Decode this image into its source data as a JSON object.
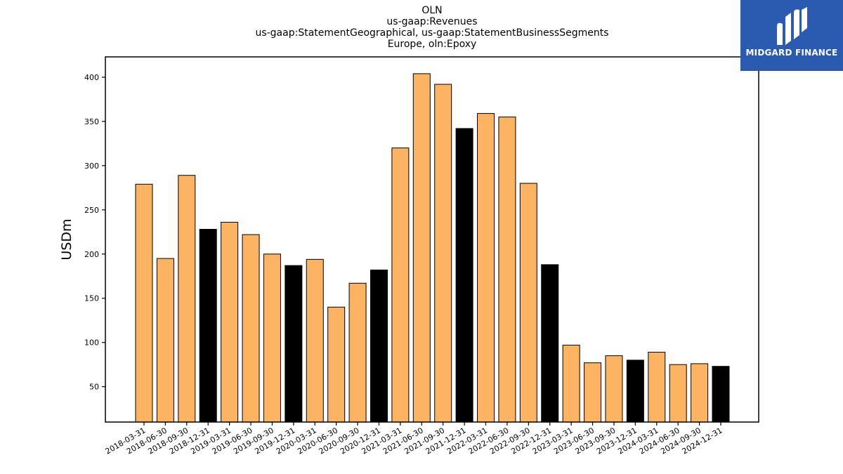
{
  "chart_data": {
    "type": "bar",
    "title_lines": [
      "OLN",
      "us-gaap:Revenues",
      "us-gaap:StatementGeographical, us-gaap:StatementBusinessSegments",
      "Europe, oln:Epoxy"
    ],
    "ylabel": "USDm",
    "xlabel": "",
    "ylim": [
      10,
      423
    ],
    "yticks": [
      50,
      100,
      150,
      200,
      250,
      300,
      350,
      400
    ],
    "grid": false,
    "colors": {
      "quarter": "#fdb462",
      "year_end": "#000000",
      "edge": "#000000"
    },
    "categories": [
      "2018-03-31",
      "2018-06-30",
      "2018-09-30",
      "2018-12-31",
      "2019-03-31",
      "2019-06-30",
      "2019-09-30",
      "2019-12-31",
      "2020-03-31",
      "2020-06-30",
      "2020-09-30",
      "2020-12-31",
      "2021-03-31",
      "2021-06-30",
      "2021-09-30",
      "2021-12-31",
      "2022-03-31",
      "2022-06-30",
      "2022-09-30",
      "2022-12-31",
      "2023-03-31",
      "2023-06-30",
      "2023-09-30",
      "2023-12-31",
      "2024-03-31",
      "2024-06-30",
      "2024-09-30",
      "2024-12-31"
    ],
    "values": [
      279,
      195,
      289,
      228,
      236,
      222,
      200,
      187,
      194,
      140,
      167,
      182,
      320,
      404,
      392,
      342,
      359,
      355,
      280,
      188,
      97,
      77,
      85,
      80,
      89,
      75,
      76,
      73
    ]
  },
  "logo": {
    "text": "MIDGARD FINANCE",
    "color": "#2a5bb0"
  }
}
